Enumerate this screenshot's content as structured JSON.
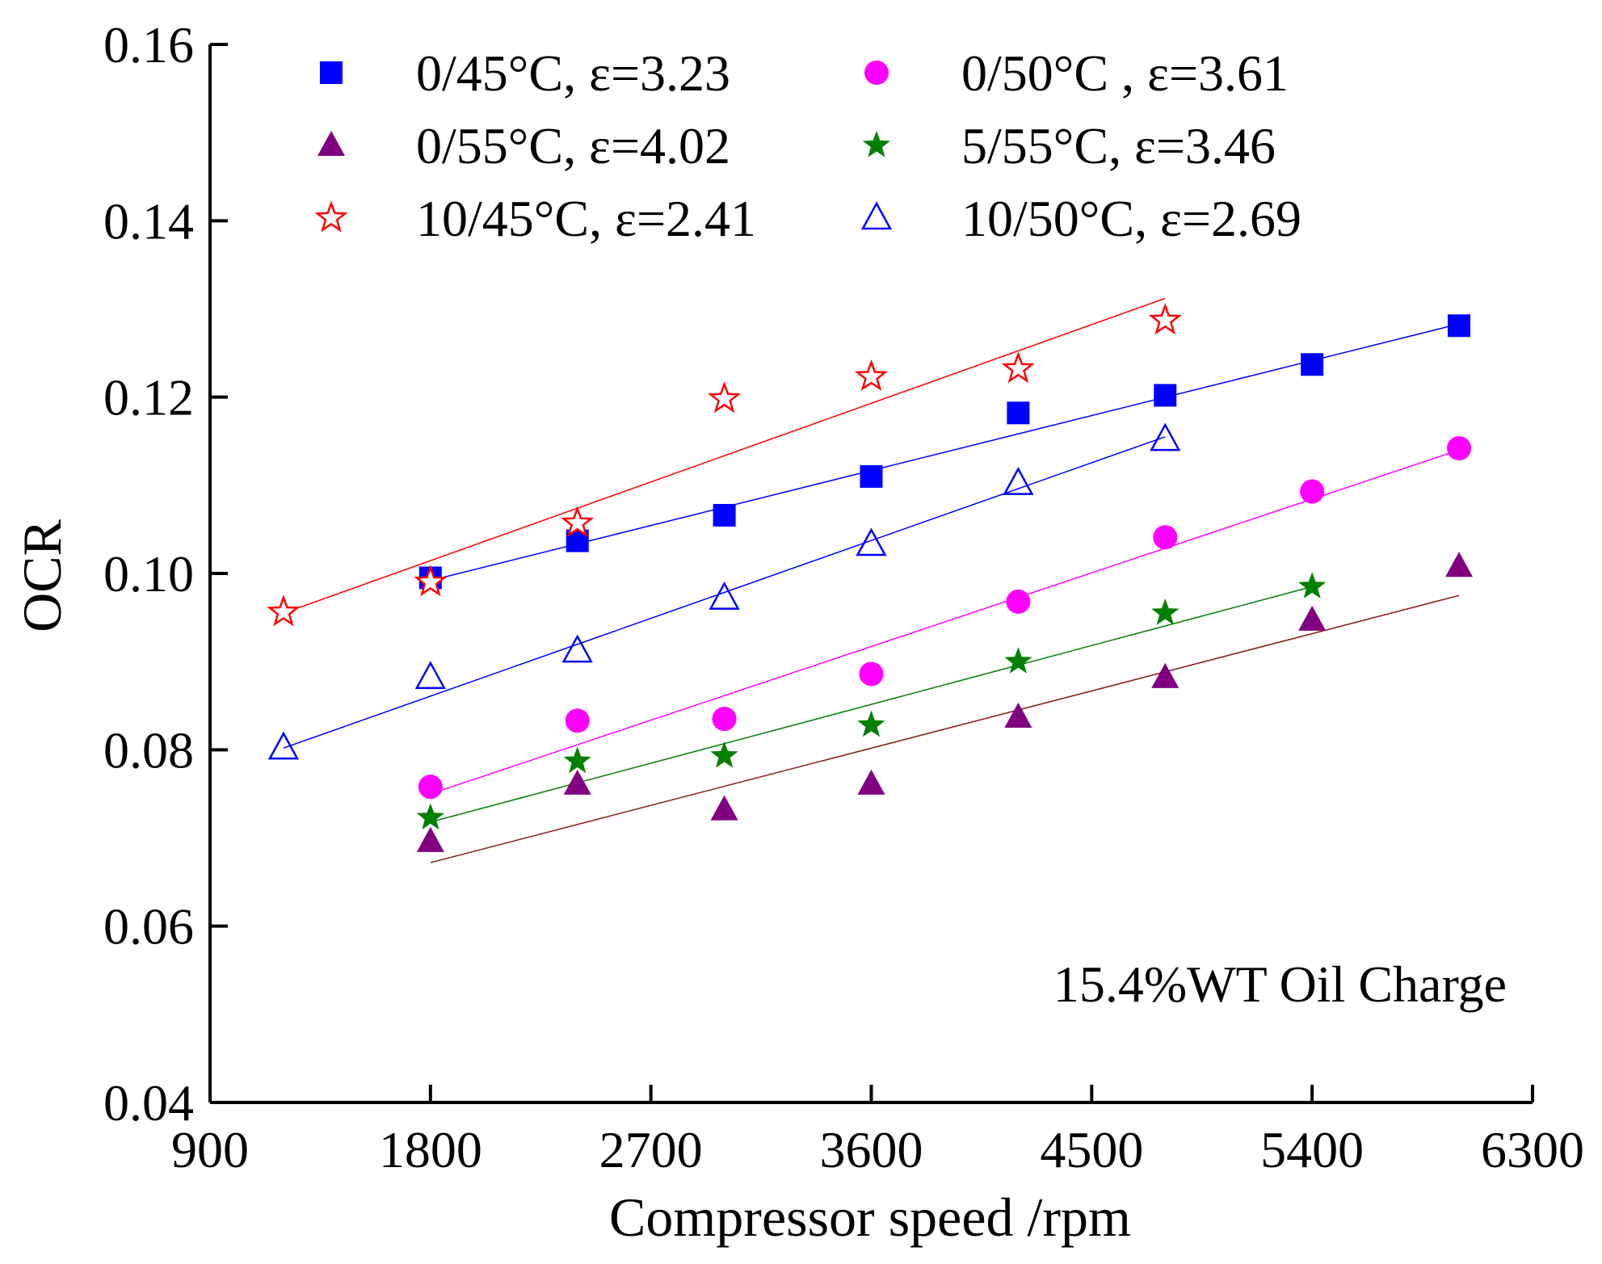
{
  "chart_data": {
    "type": "scatter",
    "title": "",
    "xlabel": "Compressor speed /rpm",
    "ylabel": "OCR",
    "xlim": [
      900,
      6300
    ],
    "ylim": [
      0.04,
      0.16
    ],
    "x_ticks": [
      900,
      1800,
      2700,
      3600,
      4500,
      5400,
      6300
    ],
    "x_tick_labels": [
      "900",
      "1800",
      "2700",
      "3600",
      "4500",
      "5400",
      "6300"
    ],
    "y_ticks": [
      0.04,
      0.06,
      0.08,
      0.1,
      0.12,
      0.14,
      0.16
    ],
    "y_tick_labels": [
      "0.04",
      "0.06",
      "0.08",
      "0.10",
      "0.12",
      "0.14",
      "0.16"
    ],
    "grid": false,
    "legend_position": "top",
    "annotation": "15.4%WT Oil Charge",
    "series": [
      {
        "name": "0/45°C, ε=3.23",
        "marker": "square-filled",
        "color": "#0000ff",
        "x": [
          1800,
          2400,
          3000,
          3600,
          4200,
          4800,
          5400,
          6000
        ],
        "y": [
          0.0995,
          0.1037,
          0.1066,
          0.111,
          0.1182,
          0.1202,
          0.1237,
          0.1281
        ],
        "fit": {
          "x": [
            1800,
            6000
          ],
          "y": [
            0.0992,
            0.1283
          ]
        }
      },
      {
        "name": "0/50°C , ε=3.61",
        "marker": "circle-filled",
        "color": "#ff00ff",
        "x": [
          1800,
          2400,
          3000,
          3600,
          4200,
          4800,
          5400,
          6000
        ],
        "y": [
          0.0758,
          0.0833,
          0.0835,
          0.0886,
          0.0968,
          0.1041,
          0.1093,
          0.1142
        ],
        "fit": {
          "x": [
            1800,
            6000
          ],
          "y": [
            0.075,
            0.114
          ]
        }
      },
      {
        "name": "0/55°C, ε=4.02",
        "marker": "triangle-filled",
        "color": "#800080",
        "x": [
          1800,
          2400,
          3000,
          3600,
          4200,
          4800,
          5400,
          6000
        ],
        "y": [
          0.0696,
          0.0761,
          0.0732,
          0.0761,
          0.0837,
          0.0882,
          0.0947,
          0.1008
        ],
        "fit": {
          "x": [
            1800,
            6000
          ],
          "y": [
            0.0672,
            0.0975
          ],
          "color": "#8b1a1a"
        }
      },
      {
        "name": "5/55°C, ε=3.46",
        "marker": "star-filled",
        "color": "#008000",
        "x": [
          1800,
          2400,
          3000,
          3600,
          4200,
          4800,
          5400
        ],
        "y": [
          0.0723,
          0.0787,
          0.0793,
          0.0828,
          0.09,
          0.0955,
          0.0985
        ],
        "fit": {
          "x": [
            1800,
            5400
          ],
          "y": [
            0.0718,
            0.0985
          ]
        }
      },
      {
        "name": "10/45°C, ε=2.41",
        "marker": "star-open",
        "color": "#ff0000",
        "x": [
          1200,
          1800,
          2400,
          3000,
          3600,
          4200,
          4800
        ],
        "y": [
          0.0956,
          0.099,
          0.1057,
          0.1198,
          0.1223,
          0.1232,
          0.1287
        ],
        "fit": {
          "x": [
            1200,
            4800
          ],
          "y": [
            0.0955,
            0.1312
          ]
        }
      },
      {
        "name": "10/50°C, ε=2.69",
        "marker": "triangle-open",
        "color": "#0000ff",
        "x": [
          1200,
          1800,
          2400,
          3000,
          3600,
          4200,
          4800
        ],
        "y": [
          0.0802,
          0.0882,
          0.0912,
          0.0972,
          0.1033,
          0.1102,
          0.1152
        ],
        "fit": {
          "x": [
            1200,
            4800
          ],
          "y": [
            0.0802,
            0.1155
          ]
        }
      }
    ]
  }
}
